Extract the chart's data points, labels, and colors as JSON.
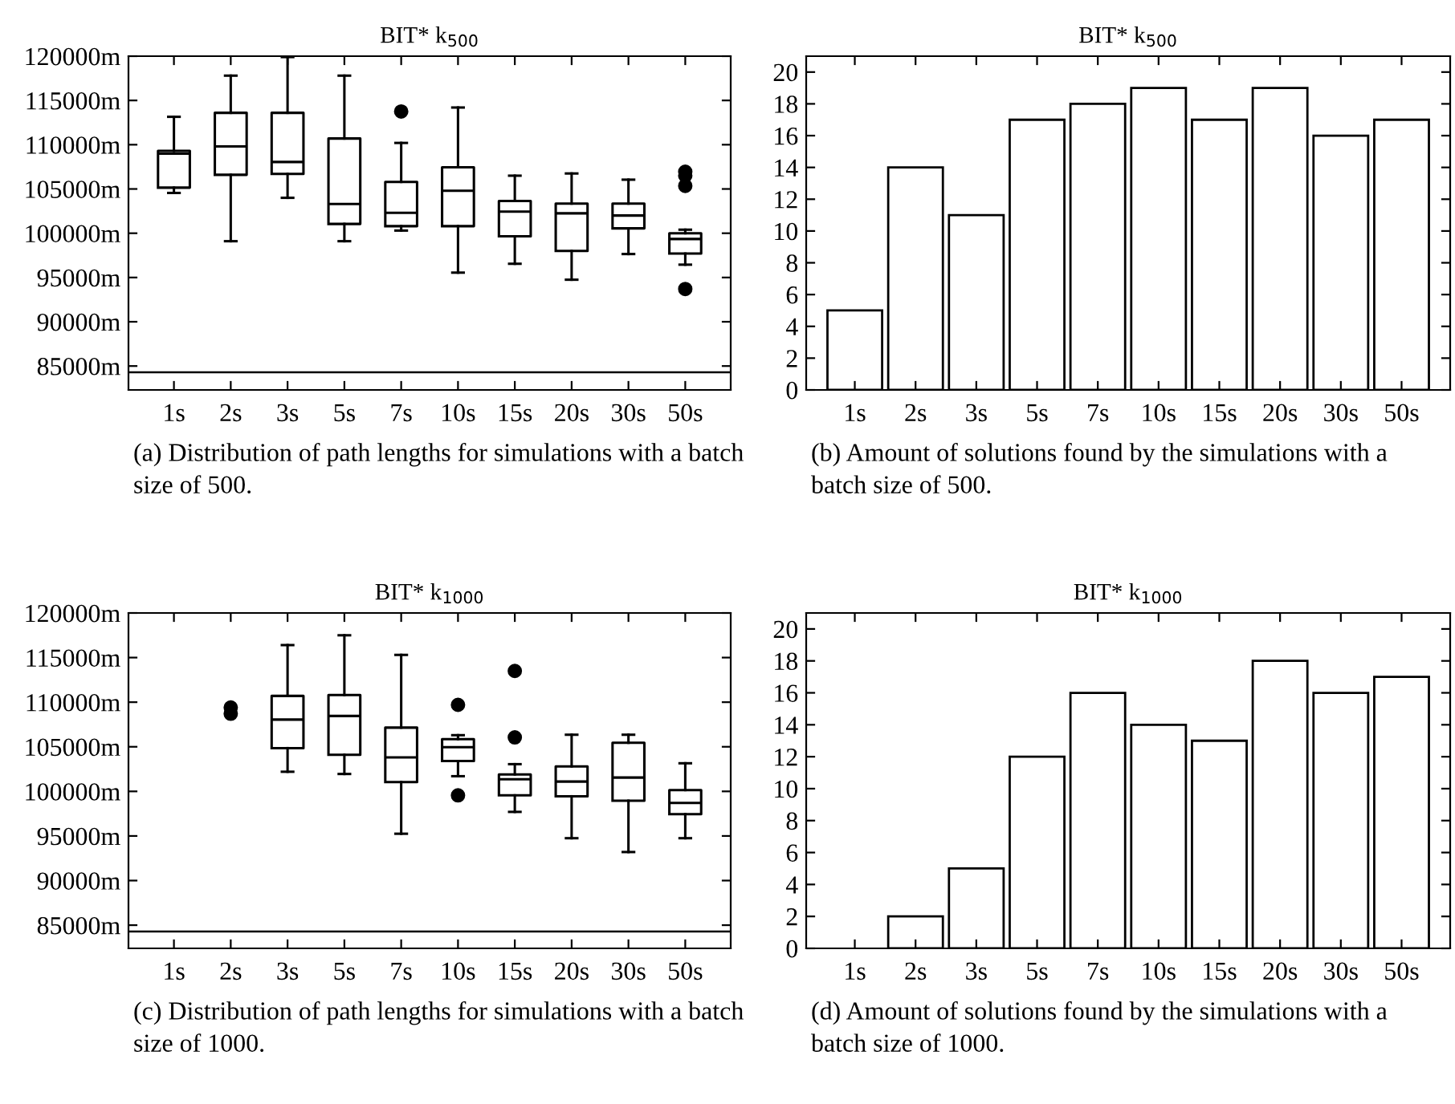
{
  "chart_data": [
    {
      "type": "box",
      "title": "BIT* k$_{500}$",
      "categories": [
        "1s",
        "2s",
        "3s",
        "5s",
        "7s",
        "10s",
        "15s",
        "20s",
        "30s",
        "50s"
      ],
      "boxes": [
        {
          "low": 104550,
          "q1": 105150,
          "median": 109000,
          "q3": 109300,
          "high": 113150
        },
        {
          "low": 99100,
          "q1": 106600,
          "median": 109800,
          "q3": 113600,
          "high": 117800
        },
        {
          "low": 104000,
          "q1": 106700,
          "median": 108050,
          "q3": 113600,
          "high": 119900
        },
        {
          "low": 99100,
          "q1": 101050,
          "median": 103300,
          "q3": 110700,
          "high": 117800
        },
        {
          "low": 100300,
          "q1": 100800,
          "median": 102300,
          "q3": 105800,
          "high": 110200,
          "outliers": [
            113750
          ]
        },
        {
          "low": 95550,
          "q1": 100800,
          "median": 104800,
          "q3": 107450,
          "high": 114200
        },
        {
          "low": 96550,
          "q1": 99650,
          "median": 102450,
          "q3": 103650,
          "high": 106500
        },
        {
          "low": 94750,
          "q1": 98000,
          "median": 102250,
          "q3": 103350,
          "high": 106750
        },
        {
          "low": 97650,
          "q1": 100550,
          "median": 102000,
          "q3": 103350,
          "high": 106050
        },
        {
          "low": 96450,
          "q1": 97700,
          "median": 99350,
          "q3": 100000,
          "high": 100400,
          "outliers": [
            106950,
            106500,
            105350,
            93700
          ]
        }
      ],
      "ylim": [
        82300,
        120000
      ],
      "yticks": [
        {
          "value": 85000,
          "label": "85000m"
        },
        {
          "value": 90000,
          "label": "90000m"
        },
        {
          "value": 95000,
          "label": "95000m"
        },
        {
          "value": 100000,
          "label": "100000m"
        },
        {
          "value": 105000,
          "label": "105000m"
        },
        {
          "value": 110000,
          "label": "110000m"
        },
        {
          "value": 115000,
          "label": "115000m"
        },
        {
          "value": 120000,
          "label": "120000m"
        }
      ],
      "ref_lines": [
        {
          "axis": "y",
          "value": 84300,
          "color": "#000000"
        }
      ],
      "annotations": [
        "(a) Distribution of path lengths for simulations with a batch size of 500."
      ]
    },
    {
      "type": "bar",
      "title": "BIT* k$_{500}$",
      "categories": [
        "1s",
        "2s",
        "3s",
        "5s",
        "7s",
        "10s",
        "15s",
        "20s",
        "30s",
        "50s"
      ],
      "values": [
        5,
        14,
        11,
        17,
        18,
        19,
        17,
        19,
        16,
        17
      ],
      "color": "#ffffff",
      "ylim": [
        0,
        21
      ],
      "yticks": [
        0,
        2,
        4,
        6,
        8,
        10,
        12,
        14,
        16,
        18,
        20
      ],
      "annotations": [
        "(b) Amount of solutions found by the simulations with a batch size of 500."
      ]
    },
    {
      "type": "box",
      "title": "BIT* k$_{1000}$",
      "categories": [
        "1s",
        "2s",
        "3s",
        "5s",
        "7s",
        "10s",
        "15s",
        "20s",
        "30s",
        "50s"
      ],
      "boxes": [
        null,
        null,
        {
          "low": 102200,
          "q1": 104850,
          "median": 108050,
          "q3": 110700,
          "high": 116400
        },
        {
          "low": 101950,
          "q1": 104100,
          "median": 108450,
          "q3": 110800,
          "high": 117500
        },
        {
          "low": 95250,
          "q1": 101050,
          "median": 103800,
          "q3": 107150,
          "high": 115300
        },
        {
          "low": 101700,
          "q1": 103400,
          "median": 104950,
          "q3": 105850,
          "high": 106300,
          "outliers": [
            109700,
            99550
          ]
        },
        {
          "low": 97700,
          "q1": 99550,
          "median": 101350,
          "q3": 101900,
          "high": 103050,
          "outliers": [
            113500,
            106050
          ]
        },
        {
          "low": 94750,
          "q1": 99450,
          "median": 101100,
          "q3": 102800,
          "high": 106350
        },
        {
          "low": 93200,
          "q1": 98950,
          "median": 101550,
          "q3": 105450,
          "high": 106350
        },
        {
          "low": 94750,
          "q1": 97450,
          "median": 98700,
          "q3": 100150,
          "high": 103150
        }
      ],
      "series": [
        {
          "type": "scatter",
          "x": [
            "2s",
            "2s"
          ],
          "values": [
            109400,
            108700
          ],
          "color": "#000000"
        }
      ],
      "ylim": [
        82400,
        120000
      ],
      "yticks": [
        {
          "value": 85000,
          "label": "85000m"
        },
        {
          "value": 90000,
          "label": "90000m"
        },
        {
          "value": 95000,
          "label": "95000m"
        },
        {
          "value": 100000,
          "label": "100000m"
        },
        {
          "value": 105000,
          "label": "105000m"
        },
        {
          "value": 110000,
          "label": "110000m"
        },
        {
          "value": 115000,
          "label": "115000m"
        },
        {
          "value": 120000,
          "label": "120000m"
        }
      ],
      "ref_lines": [
        {
          "axis": "y",
          "value": 84300,
          "color": "#000000"
        }
      ],
      "annotations": [
        "(c) Distribution of path lengths for simulations with a batch size of 1000."
      ]
    },
    {
      "type": "bar",
      "title": "BIT* k$_{1000}$",
      "categories": [
        "1s",
        "2s",
        "3s",
        "5s",
        "7s",
        "10s",
        "15s",
        "20s",
        "30s",
        "50s"
      ],
      "values": [
        0,
        2,
        5,
        12,
        16,
        14,
        13,
        18,
        16,
        17
      ],
      "color": "#ffffff",
      "ylim": [
        0,
        21
      ],
      "yticks": [
        0,
        2,
        4,
        6,
        8,
        10,
        12,
        14,
        16,
        18,
        20
      ],
      "annotations": [
        "(d) Amount of solutions found by the simulations with a batch size of 1000."
      ]
    }
  ]
}
